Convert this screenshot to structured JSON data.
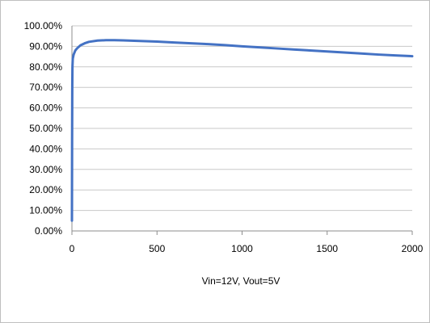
{
  "chart_data": {
    "type": "line",
    "title": "",
    "xlabel": "Vin=12V, Vout=5V",
    "ylabel": "",
    "xlim": [
      0,
      2000
    ],
    "ylim": [
      0,
      100
    ],
    "x_ticks": [
      0,
      500,
      1000,
      1500,
      2000
    ],
    "y_ticks": [
      0,
      10,
      20,
      30,
      40,
      50,
      60,
      70,
      80,
      90,
      100
    ],
    "y_tick_format": "percent_2dp",
    "grid": "horizontal",
    "legend": "none",
    "series": [
      {
        "color": "#4472c4",
        "points": [
          [
            0,
            5
          ],
          [
            1,
            45
          ],
          [
            2,
            70
          ],
          [
            3,
            80
          ],
          [
            5,
            84
          ],
          [
            10,
            86
          ],
          [
            20,
            88
          ],
          [
            30,
            89
          ],
          [
            50,
            90.5
          ],
          [
            75,
            91.5
          ],
          [
            100,
            92.2
          ],
          [
            150,
            92.8
          ],
          [
            200,
            93.0
          ],
          [
            250,
            93.0
          ],
          [
            300,
            92.9
          ],
          [
            400,
            92.6
          ],
          [
            500,
            92.3
          ],
          [
            600,
            91.9
          ],
          [
            700,
            91.5
          ],
          [
            800,
            91.1
          ],
          [
            900,
            90.6
          ],
          [
            1000,
            90.0
          ],
          [
            1100,
            89.5
          ],
          [
            1200,
            89.0
          ],
          [
            1300,
            88.5
          ],
          [
            1400,
            88.0
          ],
          [
            1500,
            87.5
          ],
          [
            1600,
            87.0
          ],
          [
            1700,
            86.5
          ],
          [
            1800,
            86.0
          ],
          [
            1900,
            85.6
          ],
          [
            2000,
            85.2
          ]
        ]
      }
    ]
  }
}
